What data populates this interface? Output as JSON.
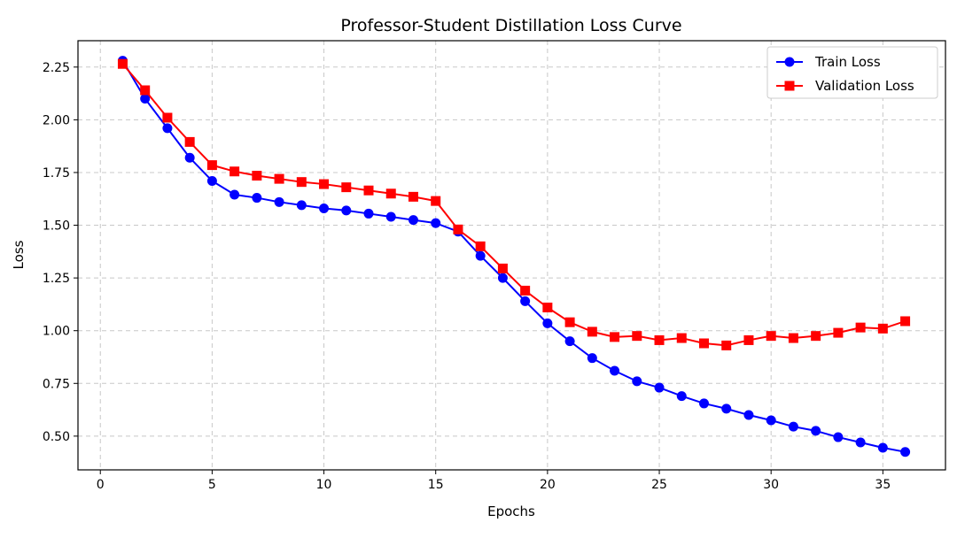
{
  "chart_data": {
    "type": "line",
    "title": "Professor-Student Distillation Loss Curve",
    "xlabel": "Epochs",
    "ylabel": "Loss",
    "xlim": [
      -1,
      37.8
    ],
    "ylim": [
      0.34,
      2.375
    ],
    "xticks": [
      0,
      5,
      10,
      15,
      20,
      25,
      30,
      35
    ],
    "yticks": [
      0.5,
      0.75,
      1.0,
      1.25,
      1.5,
      1.75,
      2.0,
      2.25
    ],
    "ytick_labels": [
      "0.50",
      "0.75",
      "1.00",
      "1.25",
      "1.50",
      "1.75",
      "2.00",
      "2.25"
    ],
    "grid": true,
    "legend_position": "top-right",
    "x": [
      1,
      2,
      3,
      4,
      5,
      6,
      7,
      8,
      9,
      10,
      11,
      12,
      13,
      14,
      15,
      16,
      17,
      18,
      19,
      20,
      21,
      22,
      23,
      24,
      25,
      26,
      27,
      28,
      29,
      30,
      31,
      32,
      33,
      34,
      35,
      36
    ],
    "series": [
      {
        "name": "Train Loss",
        "color": "#0000ff",
        "marker": "circle",
        "values": [
          2.28,
          2.1,
          1.96,
          1.82,
          1.71,
          1.645,
          1.63,
          1.61,
          1.595,
          1.58,
          1.57,
          1.555,
          1.54,
          1.525,
          1.51,
          1.47,
          1.355,
          1.25,
          1.14,
          1.035,
          0.95,
          0.87,
          0.81,
          0.76,
          0.73,
          0.69,
          0.655,
          0.63,
          0.6,
          0.575,
          0.545,
          0.525,
          0.495,
          0.47,
          0.445,
          0.425
        ]
      },
      {
        "name": "Validation Loss",
        "color": "#ff0000",
        "marker": "square",
        "values": [
          2.265,
          2.14,
          2.01,
          1.895,
          1.785,
          1.755,
          1.735,
          1.72,
          1.705,
          1.695,
          1.68,
          1.665,
          1.65,
          1.635,
          1.615,
          1.48,
          1.4,
          1.295,
          1.19,
          1.11,
          1.04,
          0.995,
          0.97,
          0.975,
          0.955,
          0.965,
          0.94,
          0.93,
          0.955,
          0.975,
          0.965,
          0.975,
          0.99,
          1.015,
          1.01,
          1.045
        ]
      }
    ]
  }
}
